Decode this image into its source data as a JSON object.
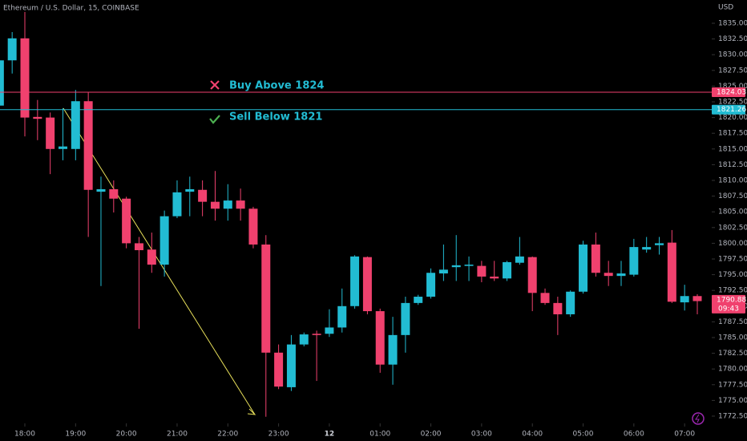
{
  "chart_data": {
    "type": "candlestick",
    "title": "Ethereum / U.S. Dollar, 15, COINBASE",
    "currency": "USD",
    "x": [
      "17:30",
      "17:45",
      "18:00",
      "18:15",
      "18:30",
      "18:45",
      "19:00",
      "19:15",
      "19:30",
      "19:45",
      "20:00",
      "20:15",
      "20:30",
      "20:45",
      "21:00",
      "21:15",
      "21:30",
      "21:45",
      "22:00",
      "22:15",
      "22:30",
      "22:45",
      "23:00",
      "23:15",
      "23:30",
      "23:45",
      "00:00",
      "00:15",
      "00:30",
      "00:45",
      "01:00",
      "01:15",
      "01:30",
      "01:45",
      "02:00",
      "02:15",
      "02:30",
      "02:45",
      "03:00",
      "03:15",
      "03:30",
      "03:45",
      "04:00",
      "04:15",
      "04:30",
      "04:45",
      "05:00",
      "05:15",
      "05:30",
      "05:45",
      "06:00",
      "06:15",
      "06:30",
      "06:45",
      "07:00",
      "07:15"
    ],
    "open": [
      1821.9,
      1829.1,
      1832.6,
      1820.1,
      1820.0,
      1815.0,
      1815.0,
      1822.6,
      1808.2,
      1808.6,
      1807.1,
      1800.0,
      1799.0,
      1796.6,
      1804.3,
      1808.2,
      1808.5,
      1806.6,
      1805.5,
      1806.8,
      1805.5,
      1799.8,
      1782.6,
      1777.1,
      1783.9,
      1785.6,
      1785.6,
      1786.6,
      1790.0,
      1797.8,
      1789.2,
      1780.7,
      1785.4,
      1790.5,
      1791.5,
      1795.2,
      1796.2,
      1796.4,
      1796.4,
      1794.7,
      1794.4,
      1796.9,
      1797.8,
      1792.1,
      1790.5,
      1788.7,
      1792.3,
      1799.8,
      1795.3,
      1794.8,
      1795.0,
      1799.0,
      1799.7,
      1800.1,
      1790.6,
      1791.6
    ],
    "high": [
      1829.6,
      1833.6,
      1836.8,
      1822.8,
      1820.8,
      1821.5,
      1824.4,
      1824.0,
      1810.6,
      1810.0,
      1807.4,
      1801.0,
      1801.7,
      1805.2,
      1810.0,
      1810.6,
      1810.0,
      1811.5,
      1809.4,
      1808.7,
      1805.8,
      1801.3,
      1783.9,
      1785.4,
      1785.8,
      1786.1,
      1789.5,
      1792.8,
      1798.1,
      1797.9,
      1789.6,
      1788.3,
      1791.5,
      1791.8,
      1796.0,
      1799.8,
      1801.3,
      1797.9,
      1797.2,
      1797.2,
      1797.2,
      1801.0,
      1797.9,
      1792.8,
      1791.5,
      1792.5,
      1800.4,
      1801.7,
      1797.2,
      1797.2,
      1800.7,
      1801.0,
      1801.0,
      1802.1,
      1793.4,
      1791.9
    ],
    "low": [
      1821.5,
      1827.0,
      1817.0,
      1816.4,
      1811.0,
      1813.2,
      1813.2,
      1801.0,
      1793.2,
      1804.9,
      1799.2,
      1786.4,
      1795.3,
      1794.7,
      1804.0,
      1804.3,
      1804.3,
      1803.6,
      1803.6,
      1803.6,
      1799.2,
      1772.4,
      1776.8,
      1776.5,
      1783.6,
      1778.1,
      1785.1,
      1785.8,
      1789.6,
      1788.7,
      1779.4,
      1777.5,
      1782.6,
      1790.2,
      1791.2,
      1794.0,
      1794.0,
      1794.0,
      1793.8,
      1794.0,
      1794.0,
      1796.6,
      1789.2,
      1790.2,
      1785.4,
      1788.3,
      1792.0,
      1794.7,
      1793.2,
      1793.2,
      1794.7,
      1798.5,
      1798.2,
      1790.5,
      1789.3,
      1788.7
    ],
    "close": [
      1829.1,
      1832.6,
      1820.0,
      1819.8,
      1815.0,
      1815.4,
      1822.6,
      1808.5,
      1808.6,
      1807.1,
      1800.0,
      1798.9,
      1796.6,
      1804.3,
      1808.1,
      1808.6,
      1806.6,
      1805.5,
      1806.8,
      1805.5,
      1799.8,
      1782.6,
      1777.2,
      1783.9,
      1785.5,
      1785.4,
      1786.6,
      1790.0,
      1797.9,
      1789.2,
      1780.7,
      1785.4,
      1790.5,
      1791.5,
      1795.3,
      1795.8,
      1796.5,
      1796.6,
      1794.7,
      1794.4,
      1797.0,
      1797.9,
      1792.1,
      1790.5,
      1788.7,
      1792.3,
      1799.8,
      1795.3,
      1794.8,
      1795.2,
      1799.4,
      1799.4,
      1800.0,
      1790.7,
      1791.6,
      1790.8
    ],
    "up_color": "#22bcd3",
    "down_color": "#f0416e",
    "ylim": [
      1771.35,
      1838.7
    ],
    "yticks": [
      {
        "value": 1772.5,
        "label": "1772.50"
      },
      {
        "value": 1775,
        "label": "1775.00"
      },
      {
        "value": 1777.5,
        "label": "1777.50"
      },
      {
        "value": 1780,
        "label": "1780.00"
      },
      {
        "value": 1782.5,
        "label": "1782.50"
      },
      {
        "value": 1785,
        "label": "1785.00"
      },
      {
        "value": 1787.5,
        "label": "1787.50"
      },
      {
        "value": 1790,
        "label": "1790.00"
      },
      {
        "value": 1792.5,
        "label": "1792.50"
      },
      {
        "value": 1795,
        "label": "1795.00"
      },
      {
        "value": 1797.5,
        "label": "1797.50"
      },
      {
        "value": 1800,
        "label": "1800.00"
      },
      {
        "value": 1802.5,
        "label": "1802.50"
      },
      {
        "value": 1805,
        "label": "1805.00"
      },
      {
        "value": 1807.5,
        "label": "1807.50"
      },
      {
        "value": 1810,
        "label": "1810.00"
      },
      {
        "value": 1812.5,
        "label": "1812.50"
      },
      {
        "value": 1815,
        "label": "1815.00"
      },
      {
        "value": 1817.5,
        "label": "1817.50"
      },
      {
        "value": 1820,
        "label": "1820.00"
      },
      {
        "value": 1822.5,
        "label": "1822.50"
      },
      {
        "value": 1825,
        "label": "1825.00"
      },
      {
        "value": 1827.5,
        "label": "1827.50"
      },
      {
        "value": 1830,
        "label": "1830.00"
      },
      {
        "value": 1832.5,
        "label": "1832.50"
      },
      {
        "value": 1835,
        "label": "1835.00"
      }
    ],
    "xticks": [
      "18:00",
      "19:00",
      "20:00",
      "21:00",
      "22:00",
      "23:00",
      {
        "value": "00:00",
        "label": "12"
      },
      "01:00",
      "02:00",
      "03:00",
      "04:00",
      "05:00",
      "06:00",
      "07:00"
    ],
    "price_lines": [
      {
        "value": 1824.03,
        "label": "1824.03",
        "color": "#f0416e"
      },
      {
        "value": 1821.26,
        "label": "1821.26",
        "color": "#22bcd3"
      }
    ],
    "annotations": [
      "Buy Above 1824",
      "Sell Below 1821"
    ],
    "last_price": {
      "value": 1790.88,
      "label": "1790.88",
      "countdown": "09:43",
      "color": "#f0416e"
    }
  }
}
